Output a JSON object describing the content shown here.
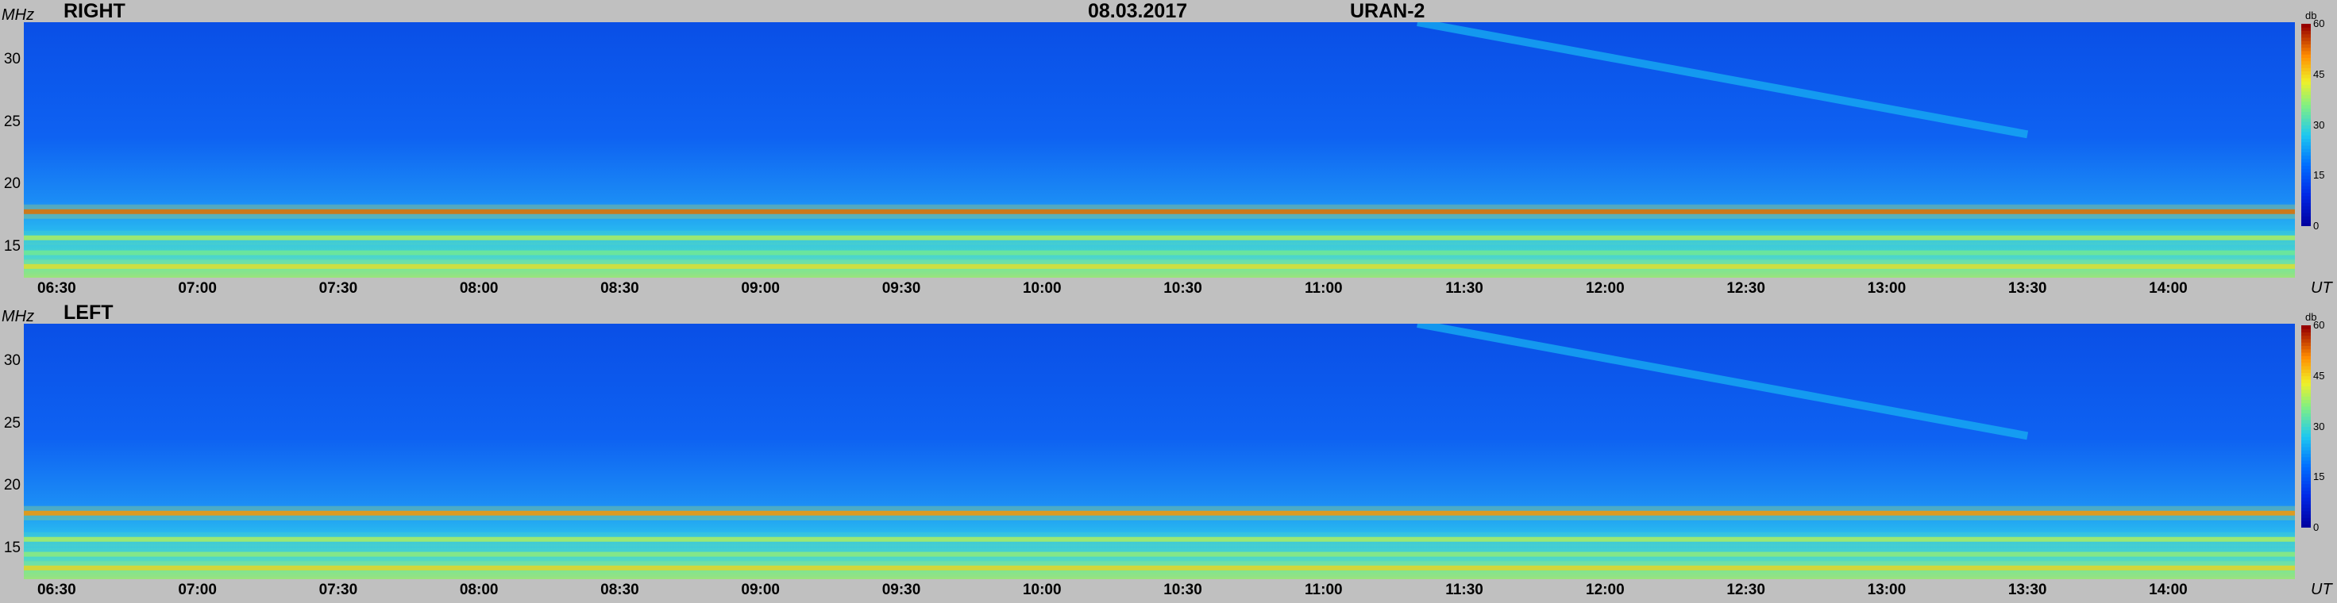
{
  "header": {
    "date": "08.03.2017",
    "station": "URAN-2"
  },
  "colors": {
    "background": "#c0c0c0",
    "low": "#0047e0",
    "mid": "#20c8f0",
    "high": "#ffe020",
    "max": "#c00000"
  },
  "chart_data": [
    {
      "type": "heatmap",
      "title": "RIGHT",
      "ylabel": "MHz",
      "xlabel": "UT",
      "ylim": [
        12.5,
        33
      ],
      "xlim": [
        "06:23",
        "14:27"
      ],
      "y_ticks": [
        "30",
        "25",
        "20",
        "15"
      ],
      "x_ticks": [
        "06:30",
        "07:00",
        "07:30",
        "08:00",
        "08:30",
        "09:00",
        "09:30",
        "10:00",
        "10:30",
        "11:00",
        "11:30",
        "12:00",
        "12:30",
        "13:00",
        "13:30",
        "14:00"
      ],
      "colorbar": {
        "label": "db",
        "range": [
          0,
          60
        ],
        "ticks": [
          "60",
          "45",
          "30",
          "15",
          "0"
        ]
      },
      "features": [
        {
          "kind": "interference_band",
          "freq_mhz": 17.8,
          "level_db": 55
        },
        {
          "kind": "interference_band",
          "freq_mhz": 15.7,
          "level_db": 40
        },
        {
          "kind": "interference_band",
          "freq_mhz": 14.5,
          "level_db": 36
        },
        {
          "kind": "interference_band",
          "freq_mhz": 13.4,
          "level_db": 45
        },
        {
          "kind": "drifting_emission",
          "start_time": "11:20",
          "start_freq_mhz": 33,
          "end_time": "13:30",
          "end_freq_mhz": 24
        }
      ]
    },
    {
      "type": "heatmap",
      "title": "LEFT",
      "ylabel": "MHz",
      "xlabel": "UT",
      "ylim": [
        12.5,
        33
      ],
      "xlim": [
        "06:23",
        "14:27"
      ],
      "y_ticks": [
        "30",
        "25",
        "20",
        "15"
      ],
      "x_ticks": [
        "06:30",
        "07:00",
        "07:30",
        "08:00",
        "08:30",
        "09:00",
        "09:30",
        "10:00",
        "10:30",
        "11:00",
        "11:30",
        "12:00",
        "12:30",
        "13:00",
        "13:30",
        "14:00"
      ],
      "colorbar": {
        "label": "db",
        "range": [
          0,
          60
        ],
        "ticks": [
          "60",
          "45",
          "30",
          "15",
          "0"
        ]
      },
      "features": [
        {
          "kind": "interference_band",
          "freq_mhz": 17.8,
          "level_db": 52
        },
        {
          "kind": "interference_band",
          "freq_mhz": 15.7,
          "level_db": 40
        },
        {
          "kind": "interference_band",
          "freq_mhz": 14.5,
          "level_db": 38
        },
        {
          "kind": "interference_band",
          "freq_mhz": 13.4,
          "level_db": 46
        },
        {
          "kind": "drifting_emission",
          "start_time": "11:20",
          "start_freq_mhz": 33,
          "end_time": "13:30",
          "end_freq_mhz": 24
        }
      ]
    }
  ]
}
